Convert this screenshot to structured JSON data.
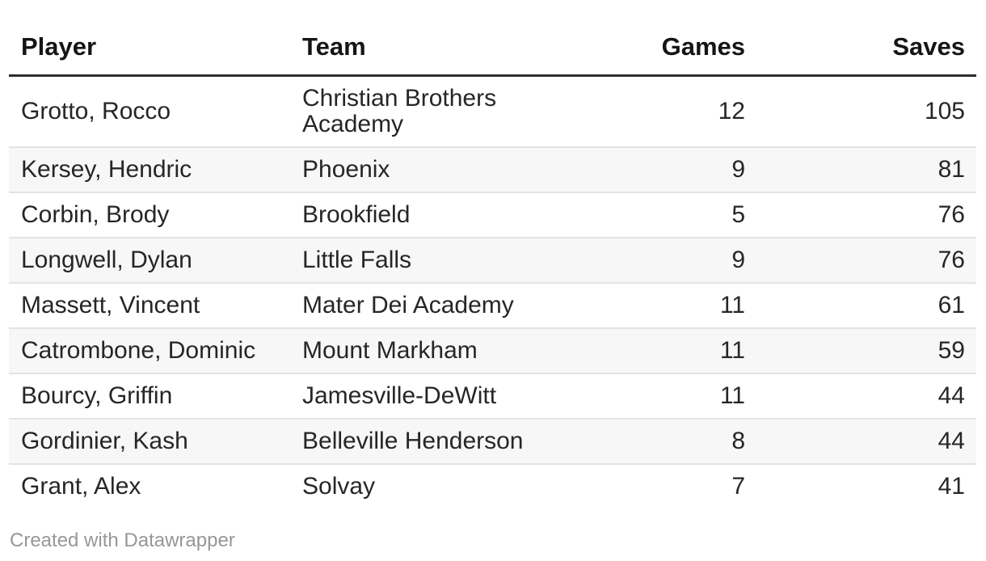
{
  "chart_data": {
    "type": "table",
    "columns": [
      {
        "key": "player",
        "label": "Player",
        "align": "left"
      },
      {
        "key": "team",
        "label": "Team",
        "align": "left"
      },
      {
        "key": "games",
        "label": "Games",
        "align": "right"
      },
      {
        "key": "saves",
        "label": "Saves",
        "align": "right"
      }
    ],
    "rows": [
      {
        "player": "Grotto, Rocco",
        "team": "Christian Brothers Academy",
        "games": 12,
        "saves": 105
      },
      {
        "player": "Kersey, Hendric",
        "team": "Phoenix",
        "games": 9,
        "saves": 81
      },
      {
        "player": "Corbin, Brody",
        "team": "Brookfield",
        "games": 5,
        "saves": 76
      },
      {
        "player": "Longwell, Dylan",
        "team": "Little Falls",
        "games": 9,
        "saves": 76
      },
      {
        "player": "Massett, Vincent",
        "team": "Mater Dei Academy",
        "games": 11,
        "saves": 61
      },
      {
        "player": "Catrombone, Dominic",
        "team": "Mount Markham",
        "games": 11,
        "saves": 59
      },
      {
        "player": "Bourcy, Griffin",
        "team": "Jamesville-DeWitt",
        "games": 11,
        "saves": 44
      },
      {
        "player": "Gordinier, Kash",
        "team": "Belleville Henderson",
        "games": 8,
        "saves": 44
      },
      {
        "player": "Grant, Alex",
        "team": "Solvay",
        "games": 7,
        "saves": 41
      }
    ],
    "layout_hints": {
      "zebra_striping": true,
      "header_rule": "thick dark bottom border",
      "numeric_columns_right_aligned": true
    }
  },
  "footer": {
    "credit": "Created with Datawrapper"
  },
  "colors": {
    "header_text": "#151515",
    "body_text": "#262626",
    "header_rule": "#2e2e2e",
    "row_separator": "#e3e3e3",
    "zebra_row": "#f7f7f7",
    "footer_text": "#979797",
    "background": "#ffffff"
  }
}
